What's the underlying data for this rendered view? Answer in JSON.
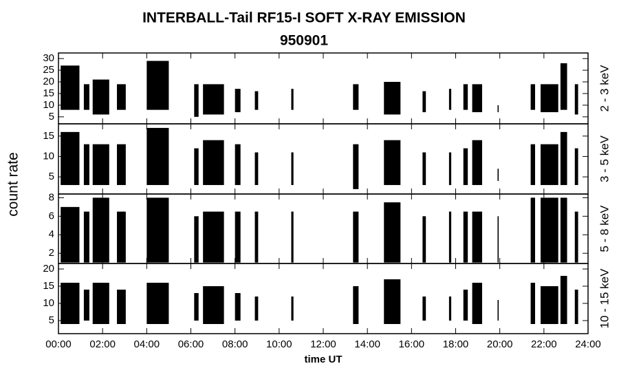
{
  "chart_data": {
    "type": "range",
    "title": "INTERBALL-Tail RF15-I SOFT X-RAY EMISSION",
    "subtitle": "950901",
    "x_label": "time UT",
    "y_label": "count rate",
    "color": "#000000",
    "xlim": [
      0,
      24
    ],
    "xticks": [
      {
        "value": 0,
        "label": "00:00"
      },
      {
        "value": 2,
        "label": "02:00"
      },
      {
        "value": 4,
        "label": "04:00"
      },
      {
        "value": 6,
        "label": "06:00"
      },
      {
        "value": 8,
        "label": "08:00"
      },
      {
        "value": 10,
        "label": "10:00"
      },
      {
        "value": 12,
        "label": "12:00"
      },
      {
        "value": 14,
        "label": "14:00"
      },
      {
        "value": 16,
        "label": "16:00"
      },
      {
        "value": 18,
        "label": "18:00"
      },
      {
        "value": 20,
        "label": "20:00"
      },
      {
        "value": 22,
        "label": "22:00"
      },
      {
        "value": 24,
        "label": "24:00"
      }
    ],
    "x_start": [
      0.1,
      1.15,
      1.55,
      2.65,
      4.0,
      6.15,
      6.55,
      8.0,
      8.9,
      10.55,
      13.35,
      14.75,
      16.5,
      17.7,
      18.35,
      18.75,
      19.9,
      21.4,
      21.85,
      22.75,
      23.4
    ],
    "x_end": [
      0.95,
      1.4,
      2.3,
      3.05,
      5.0,
      6.35,
      7.5,
      8.25,
      9.05,
      10.65,
      13.6,
      15.5,
      16.65,
      17.8,
      18.55,
      19.2,
      19.95,
      21.6,
      22.65,
      23.05,
      23.55
    ],
    "panels": [
      {
        "name": "2 - 3 keV",
        "ylim": [
          2,
          32.4
        ],
        "yticks": [
          5,
          10,
          15,
          20,
          25,
          30
        ],
        "low": [
          8,
          8,
          6,
          8,
          8,
          5,
          6,
          7,
          8,
          8,
          8,
          6,
          7,
          8,
          8,
          7,
          7,
          8,
          7,
          8,
          6
        ],
        "high": [
          27,
          19,
          21,
          19,
          29,
          19,
          19,
          17,
          16,
          17,
          19,
          20,
          16,
          17,
          19,
          19,
          10,
          19,
          19,
          28,
          19
        ]
      },
      {
        "name": "3 - 5 keV",
        "ylim": [
          0.8,
          18
        ],
        "yticks": [
          5,
          10,
          15
        ],
        "low": [
          3,
          3,
          3,
          3,
          3,
          3,
          3,
          3,
          3,
          3,
          2,
          3,
          3,
          3,
          3,
          3,
          4,
          3,
          3,
          3,
          3
        ],
        "high": [
          16,
          13,
          13,
          13,
          17,
          12,
          14,
          13,
          11,
          11,
          13,
          14,
          11,
          11,
          12,
          14,
          7,
          13,
          13,
          16,
          12
        ]
      },
      {
        "name": "5 - 8 keV",
        "ylim": [
          0.9,
          8.4
        ],
        "yticks": [
          2,
          4,
          6,
          8
        ],
        "low": [
          1,
          1,
          1,
          1,
          1,
          1,
          1,
          1,
          1,
          1,
          1,
          1,
          1,
          1,
          1,
          1,
          1,
          1,
          1,
          1,
          1
        ],
        "high": [
          7,
          6.5,
          8,
          6.5,
          8,
          6,
          6.5,
          6.5,
          6.5,
          6.5,
          6.5,
          7.5,
          6,
          6.5,
          6.5,
          6.5,
          6,
          8,
          8,
          8,
          6.5
        ]
      },
      {
        "name": "10 - 15 keV",
        "ylim": [
          1.2,
          21.6
        ],
        "yticks": [
          5,
          10,
          15,
          20
        ],
        "low": [
          4,
          5,
          4,
          4,
          4,
          5,
          4,
          5,
          5,
          5,
          4,
          4,
          5,
          5,
          5,
          4,
          5,
          4,
          4,
          4,
          4
        ],
        "high": [
          16,
          14,
          16,
          14,
          16,
          13,
          15,
          13,
          12,
          12,
          15,
          17,
          12,
          12,
          14,
          16,
          11,
          16,
          15,
          18,
          14
        ]
      }
    ]
  }
}
